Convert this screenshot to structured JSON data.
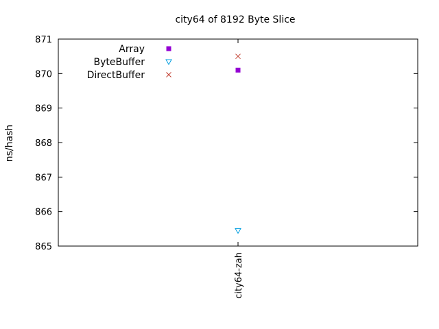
{
  "chart_data": {
    "type": "scatter",
    "title": "city64 of 8192 Byte Slice",
    "xlabel": "",
    "ylabel": "ns/hash",
    "categories": [
      "city64-zah"
    ],
    "ylim": [
      865,
      871
    ],
    "yticks": [
      "865",
      "866",
      "867",
      "868",
      "869",
      "870",
      "871"
    ],
    "grid": false,
    "legend_position": "top-left",
    "series": [
      {
        "name": "Array",
        "values": [
          870.1
        ],
        "color": "#9400d3",
        "marker": "square"
      },
      {
        "name": "ByteBuffer",
        "values": [
          865.45
        ],
        "color": "#009ee0",
        "marker": "triangle-down"
      },
      {
        "name": "DirectBuffer",
        "values": [
          870.5
        ],
        "color": "#c0392b",
        "marker": "cross"
      }
    ]
  }
}
